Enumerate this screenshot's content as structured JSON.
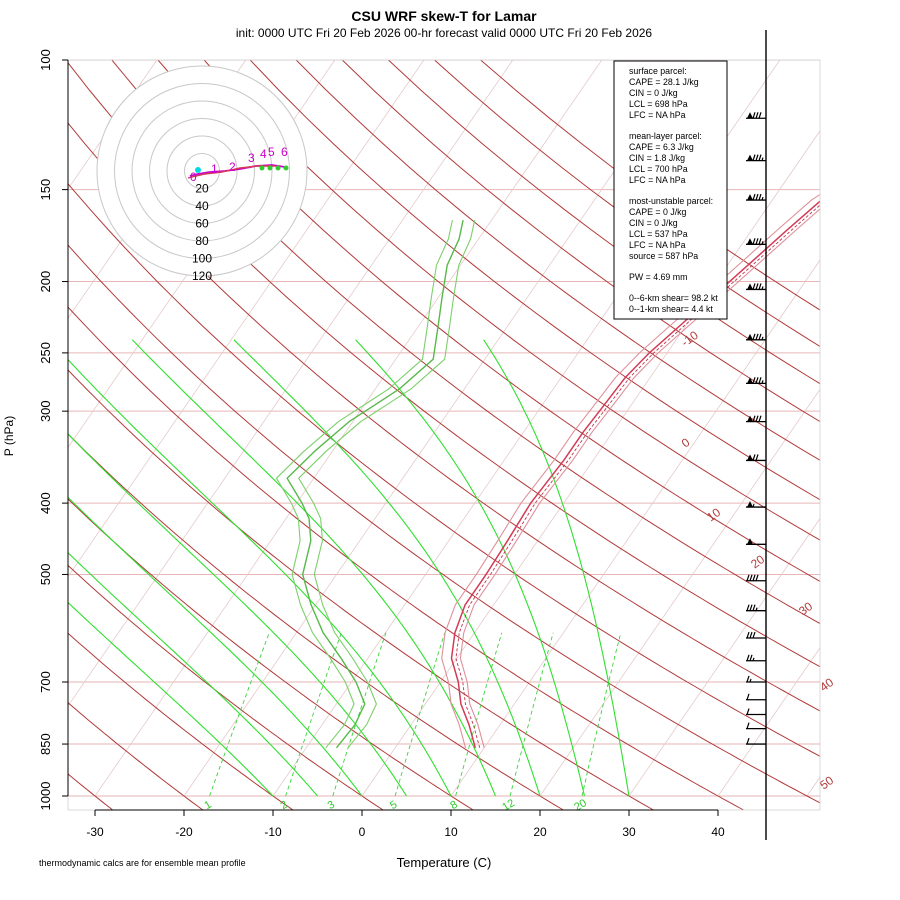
{
  "chart_data": {
    "type": "skew-t",
    "title": "CSU WRF skew-T for Lamar",
    "subtitle": "init: 0000 UTC Fri 20 Feb 2026     00-hr forecast valid 0000 UTC Fri 20 Feb 2026",
    "xlabel": "Temperature (C)",
    "ylabel": "P (hPa)",
    "footnote": "thermodynamic calcs are for ensemble mean profile",
    "pressure_ticks": [
      "100",
      "150",
      "200",
      "250",
      "300",
      "400",
      "500",
      "700",
      "850",
      "1000"
    ],
    "temperature_ticks": [
      "-30",
      "-20",
      "-10",
      "0",
      "10",
      "20",
      "30",
      "40"
    ],
    "isotherm_labels": [
      "-10",
      "0",
      "10",
      "20",
      "30",
      "40",
      "50"
    ],
    "mixing_ratio_labels": [
      "1",
      "2",
      "3",
      "5",
      "8",
      "12",
      "20"
    ],
    "hodograph_ring_labels": [
      "20",
      "40",
      "60",
      "80",
      "100",
      "120"
    ],
    "hodograph_height_labels": [
      "0",
      "1",
      "2",
      "3",
      "4",
      "5",
      "6"
    ],
    "stats": {
      "surface_title": "surface parcel:",
      "surface": [
        "CAPE = 28.1 J/kg",
        "CIN = 0 J/kg",
        "LCL = 698 hPa",
        "LFC = NA hPa"
      ],
      "mixed_title": "mean-layer parcel:",
      "mixed": [
        "CAPE = 6.3 J/kg",
        "CIN = 1.8 J/kg",
        "LCL = 700 hPa",
        "LFC = NA hPa"
      ],
      "mu_title": "most-unstable parcel:",
      "mu": [
        "CAPE = 0 J/kg",
        "CIN = 0 J/kg",
        "LCL = 537 hPa",
        "LFC = NA hPa",
        "source = 587 hPa"
      ],
      "pw": "PW =  4.69 mm",
      "shear": [
        "0--6-km shear= 98.2 kt",
        "0--1-km shear= 4.4 kt"
      ]
    },
    "temperature_profile": {
      "p": [
        860,
        800,
        750,
        700,
        650,
        600,
        550,
        500,
        450,
        400,
        350,
        320,
        300,
        270,
        250,
        220,
        200,
        170,
        155,
        140,
        125,
        115
      ],
      "t": [
        9,
        6.5,
        4.0,
        2.0,
        -0.6,
        -2.2,
        -3.2,
        -3.2,
        -3.4,
        -3.7,
        -3.3,
        -3.3,
        -3.1,
        -2.8,
        -2.0,
        0.0,
        1.5,
        4.0,
        5.5,
        8.5,
        12.5,
        14.8
      ]
    },
    "dewpoint_profile": {
      "p": [
        860,
        800,
        750,
        700,
        650,
        600,
        550,
        500,
        450,
        420,
        400,
        370,
        340,
        310,
        280,
        255,
        230,
        210,
        190,
        175,
        165
      ],
      "td": [
        -6.6,
        -6.3,
        -6.8,
        -9.5,
        -13,
        -17,
        -20.5,
        -23.8,
        -25.5,
        -27.4,
        -29.4,
        -33.0,
        -32.0,
        -30.4,
        -27.3,
        -25.8,
        -27.8,
        -29.6,
        -31.5,
        -32.2,
        -33.2
      ]
    },
    "wind_barbs": [
      {
        "p": 120,
        "speed_kt": 80
      },
      {
        "p": 137,
        "speed_kt": 85
      },
      {
        "p": 155,
        "speed_kt": 85
      },
      {
        "p": 178,
        "speed_kt": 85
      },
      {
        "p": 205,
        "speed_kt": 85
      },
      {
        "p": 240,
        "speed_kt": 85
      },
      {
        "p": 275,
        "speed_kt": 85
      },
      {
        "p": 310,
        "speed_kt": 80
      },
      {
        "p": 350,
        "speed_kt": 70
      },
      {
        "p": 405,
        "speed_kt": 55
      },
      {
        "p": 455,
        "speed_kt": 50
      },
      {
        "p": 510,
        "speed_kt": 40
      },
      {
        "p": 560,
        "speed_kt": 35
      },
      {
        "p": 610,
        "speed_kt": 30
      },
      {
        "p": 655,
        "speed_kt": 25
      },
      {
        "p": 700,
        "speed_kt": 15
      },
      {
        "p": 740,
        "speed_kt": 10
      },
      {
        "p": 775,
        "speed_kt": 10
      },
      {
        "p": 810,
        "speed_kt": 10
      },
      {
        "p": 850,
        "speed_kt": 10
      }
    ]
  }
}
